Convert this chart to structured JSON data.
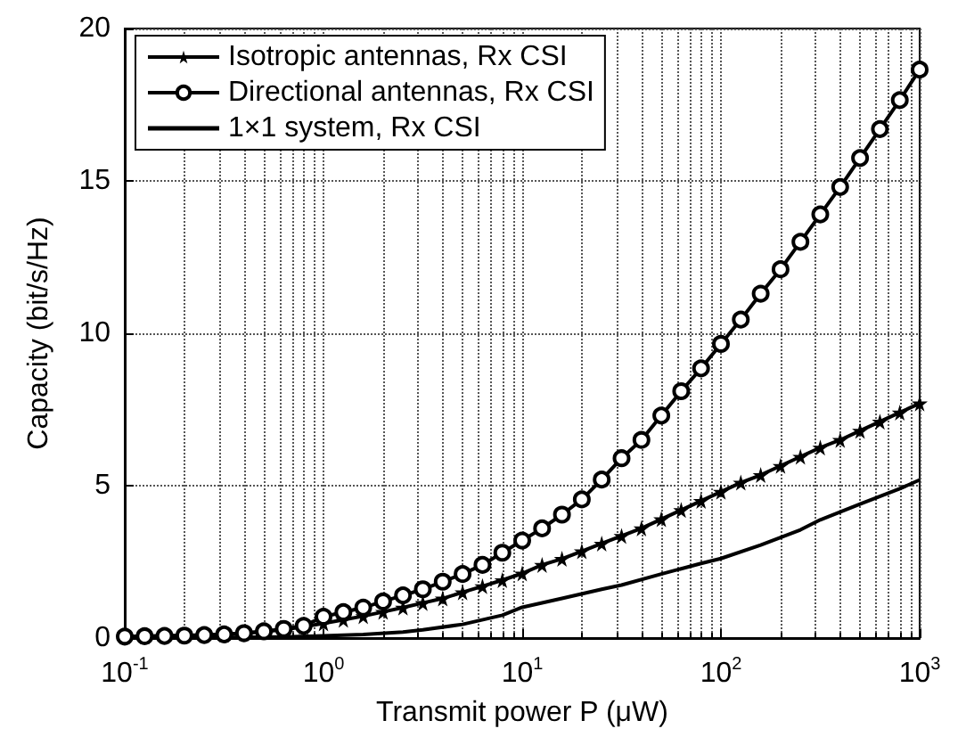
{
  "chart_data": {
    "type": "line",
    "xlabel": "Transmit power P (μW)",
    "ylabel": "Capacity (bit/s/Hz)",
    "log": "x",
    "xlim": [
      0.1,
      1000
    ],
    "xticks": [
      {
        "value": 0.1,
        "label": "10$^{-1}$"
      },
      {
        "value": 1,
        "label": "10$^{0}$"
      },
      {
        "value": 10,
        "label": "10$^{1}$"
      },
      {
        "value": 100,
        "label": "10$^{2}$"
      },
      {
        "value": 1000,
        "label": "10$^{3}$"
      }
    ],
    "ylim": [
      0,
      20
    ],
    "yticks": [
      0,
      5,
      10,
      15,
      20
    ],
    "grid": true,
    "line_style": "solid",
    "legend": "top left",
    "x": [
      0.1,
      0.1259,
      0.1585,
      0.1995,
      0.2512,
      0.3162,
      0.3981,
      0.5012,
      0.631,
      0.7943,
      1,
      1.259,
      1.585,
      1.995,
      2.512,
      3.162,
      3.981,
      5.012,
      6.31,
      7.943,
      10,
      12.59,
      15.85,
      19.95,
      25.12,
      31.62,
      39.81,
      50.12,
      63.1,
      79.43,
      100,
      125.9,
      158.5,
      199.5,
      251.2,
      316.2,
      398.1,
      501.2,
      631,
      794.3,
      1000
    ],
    "series": [
      {
        "name": "Isotropic antennas, Rx CSI",
        "color": "#000000",
        "marker": "star",
        "values": [
          0.05,
          0.06,
          0.07,
          0.08,
          0.1,
          0.12,
          0.16,
          0.21,
          0.28,
          0.37,
          0.48,
          0.6,
          0.72,
          0.86,
          1.0,
          1.15,
          1.3,
          1.5,
          1.7,
          1.9,
          2.12,
          2.4,
          2.6,
          2.85,
          3.1,
          3.35,
          3.6,
          3.9,
          4.2,
          4.5,
          4.8,
          5.1,
          5.35,
          5.65,
          5.95,
          6.25,
          6.5,
          6.8,
          7.1,
          7.4,
          7.7
        ]
      },
      {
        "name": "Directional antennas, Rx CSI",
        "color": "#000000",
        "marker": "circle",
        "values": [
          0.05,
          0.06,
          0.07,
          0.08,
          0.1,
          0.12,
          0.16,
          0.22,
          0.3,
          0.4,
          0.7,
          0.85,
          1.0,
          1.2,
          1.4,
          1.6,
          1.85,
          2.1,
          2.4,
          2.8,
          3.2,
          3.6,
          4.05,
          4.55,
          5.2,
          5.9,
          6.5,
          7.3,
          8.1,
          8.85,
          9.65,
          10.45,
          11.3,
          12.1,
          13.0,
          13.9,
          14.8,
          15.75,
          16.7,
          17.65,
          18.65
        ]
      },
      {
        "name": "1×1 system, Rx CSI",
        "color": "#000000",
        "marker": "none",
        "x": [
          0.1,
          0.3162,
          0.631,
          1,
          1.585,
          2.512,
          3.162,
          5.012,
          7.943,
          10,
          15.85,
          25.12,
          31.62,
          50.12,
          79.43,
          100,
          158.5,
          251.2,
          316.2,
          501.2,
          794.3,
          1000
        ],
        "values": [
          0.01,
          0.02,
          0.04,
          0.07,
          0.12,
          0.2,
          0.27,
          0.45,
          0.75,
          1.01,
          1.3,
          1.6,
          1.74,
          2.1,
          2.45,
          2.61,
          3.05,
          3.55,
          3.88,
          4.4,
          4.9,
          5.19
        ]
      }
    ]
  }
}
